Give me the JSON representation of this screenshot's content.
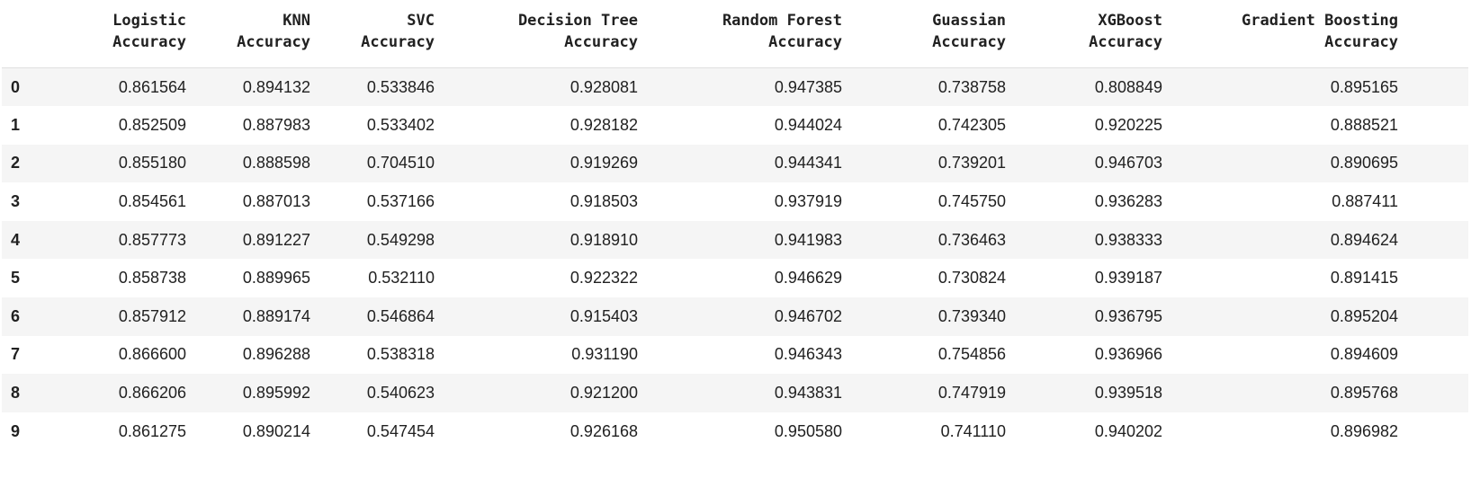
{
  "table": {
    "index_header": "",
    "columns": [
      [
        "Logistic",
        "Accuracy"
      ],
      [
        "KNN",
        "Accuracy"
      ],
      [
        "SVC",
        "Accuracy"
      ],
      [
        "Decision Tree",
        "Accuracy"
      ],
      [
        "Random Forest",
        "Accuracy"
      ],
      [
        "Guassian",
        "Accuracy"
      ],
      [
        "XGBoost",
        "Accuracy"
      ],
      [
        "Gradient Boosting",
        "Accuracy"
      ]
    ],
    "rows": [
      {
        "index": "0",
        "values": [
          "0.861564",
          "0.894132",
          "0.533846",
          "0.928081",
          "0.947385",
          "0.738758",
          "0.808849",
          "0.895165"
        ]
      },
      {
        "index": "1",
        "values": [
          "0.852509",
          "0.887983",
          "0.533402",
          "0.928182",
          "0.944024",
          "0.742305",
          "0.920225",
          "0.888521"
        ]
      },
      {
        "index": "2",
        "values": [
          "0.855180",
          "0.888598",
          "0.704510",
          "0.919269",
          "0.944341",
          "0.739201",
          "0.946703",
          "0.890695"
        ]
      },
      {
        "index": "3",
        "values": [
          "0.854561",
          "0.887013",
          "0.537166",
          "0.918503",
          "0.937919",
          "0.745750",
          "0.936283",
          "0.887411"
        ]
      },
      {
        "index": "4",
        "values": [
          "0.857773",
          "0.891227",
          "0.549298",
          "0.918910",
          "0.941983",
          "0.736463",
          "0.938333",
          "0.894624"
        ]
      },
      {
        "index": "5",
        "values": [
          "0.858738",
          "0.889965",
          "0.532110",
          "0.922322",
          "0.946629",
          "0.730824",
          "0.939187",
          "0.891415"
        ]
      },
      {
        "index": "6",
        "values": [
          "0.857912",
          "0.889174",
          "0.546864",
          "0.915403",
          "0.946702",
          "0.739340",
          "0.936795",
          "0.895204"
        ]
      },
      {
        "index": "7",
        "values": [
          "0.866600",
          "0.896288",
          "0.538318",
          "0.931190",
          "0.946343",
          "0.754856",
          "0.936966",
          "0.894609"
        ]
      },
      {
        "index": "8",
        "values": [
          "0.866206",
          "0.895992",
          "0.540623",
          "0.921200",
          "0.943831",
          "0.747919",
          "0.939518",
          "0.895768"
        ]
      },
      {
        "index": "9",
        "values": [
          "0.861275",
          "0.890214",
          "0.547454",
          "0.926168",
          "0.950580",
          "0.741110",
          "0.940202",
          "0.896982"
        ]
      }
    ]
  }
}
